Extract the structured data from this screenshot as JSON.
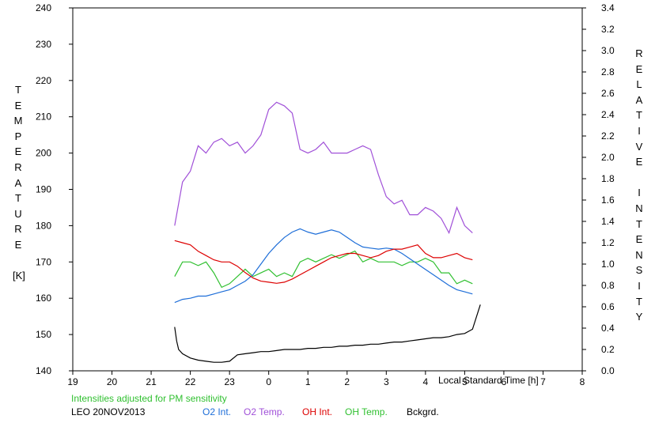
{
  "chart_data": {
    "type": "line",
    "left_axis_letters": [
      "T",
      "E",
      "M",
      "P",
      "E",
      "R",
      "A",
      "T",
      "U",
      "R",
      "E",
      "",
      "[K]"
    ],
    "right_axis_letters": [
      "R",
      "E",
      "L",
      "A",
      "T",
      "I",
      "V",
      "E",
      "",
      "I",
      "N",
      "T",
      "E",
      "N",
      "S",
      "I",
      "T",
      "Y"
    ],
    "xlabel": "Local Standard Time [h]",
    "x_ticks": [
      "19",
      "20",
      "21",
      "22",
      "23",
      "0",
      "1",
      "2",
      "3",
      "4",
      "5",
      "6",
      "7",
      "8"
    ],
    "xlim": [
      19,
      32
    ],
    "ylim_left": [
      140,
      240
    ],
    "y_ticks_left": [
      "140",
      "150",
      "160",
      "170",
      "180",
      "190",
      "200",
      "210",
      "220",
      "230",
      "240"
    ],
    "ylim_right": [
      0.0,
      3.4
    ],
    "y_ticks_right": [
      "0.0",
      "0.2",
      "0.4",
      "0.6",
      "0.8",
      "1.0",
      "1.2",
      "1.4",
      "1.6",
      "1.8",
      "2.0",
      "2.2",
      "2.4",
      "2.6",
      "2.8",
      "3.0",
      "3.2",
      "3.4"
    ],
    "note": "Intensities adjusted for PM sensitivity",
    "station": "LEO 20NOV2013",
    "legend": [
      {
        "label": "O2 Int.",
        "color": "#1e6ed8"
      },
      {
        "label": "O2 Temp.",
        "color": "#a050d8"
      },
      {
        "label": "OH Int.",
        "color": "#dd0000"
      },
      {
        "label": "OH Temp.",
        "color": "#30c030"
      },
      {
        "label": "Bckgrd.",
        "color": "#000000"
      }
    ],
    "series": [
      {
        "name": "O2 Temp.",
        "axis": "left",
        "color": "#a050d8",
        "x": [
          21.6,
          21.8,
          22.0,
          22.2,
          22.4,
          22.6,
          22.8,
          23.0,
          23.2,
          23.4,
          23.6,
          23.8,
          24.0,
          24.2,
          24.4,
          24.6,
          24.8,
          25.0,
          25.2,
          25.4,
          25.6,
          25.8,
          26.0,
          26.2,
          26.4,
          26.6,
          26.8,
          27.0,
          27.2,
          27.4,
          27.6,
          27.8,
          28.0,
          28.2,
          28.4,
          28.6,
          28.8,
          29.0,
          29.2
        ],
        "y": [
          180,
          192,
          195,
          202,
          200,
          203,
          204,
          202,
          203,
          200,
          202,
          205,
          212,
          214,
          213,
          211,
          201,
          200,
          201,
          203,
          200,
          200,
          200,
          201,
          202,
          201,
          194,
          188,
          186,
          187,
          183,
          183,
          185,
          184,
          182,
          178,
          185,
          180,
          178
        ]
      },
      {
        "name": "OH Temp.",
        "axis": "left",
        "color": "#30c030",
        "x": [
          21.6,
          21.8,
          22.0,
          22.2,
          22.4,
          22.6,
          22.8,
          23.0,
          23.2,
          23.4,
          23.6,
          23.8,
          24.0,
          24.2,
          24.4,
          24.6,
          24.8,
          25.0,
          25.2,
          25.4,
          25.6,
          25.8,
          26.0,
          26.2,
          26.4,
          26.6,
          26.8,
          27.0,
          27.2,
          27.4,
          27.6,
          27.8,
          28.0,
          28.2,
          28.4,
          28.6,
          28.8,
          29.0,
          29.2
        ],
        "y": [
          166,
          170,
          170,
          169,
          170,
          167,
          163,
          164,
          166,
          168,
          166,
          167,
          168,
          166,
          167,
          166,
          170,
          171,
          170,
          171,
          172,
          171,
          172,
          173,
          170,
          171,
          170,
          170,
          170,
          169,
          170,
          170,
          171,
          170,
          167,
          167,
          164,
          165,
          164
        ]
      },
      {
        "name": "O2 Int.",
        "axis": "right",
        "color": "#1e6ed8",
        "x": [
          21.6,
          21.8,
          22.0,
          22.2,
          22.4,
          22.6,
          22.8,
          23.0,
          23.2,
          23.4,
          23.6,
          23.8,
          24.0,
          24.2,
          24.4,
          24.6,
          24.8,
          25.0,
          25.2,
          25.4,
          25.6,
          25.8,
          26.0,
          26.2,
          26.4,
          26.6,
          26.8,
          27.0,
          27.2,
          27.4,
          27.6,
          27.8,
          28.0,
          28.2,
          28.4,
          28.6,
          28.8,
          29.0,
          29.2
        ],
        "y": [
          0.64,
          0.67,
          0.68,
          0.7,
          0.7,
          0.72,
          0.74,
          0.76,
          0.8,
          0.84,
          0.9,
          1.0,
          1.1,
          1.18,
          1.25,
          1.3,
          1.33,
          1.3,
          1.28,
          1.3,
          1.32,
          1.3,
          1.25,
          1.2,
          1.16,
          1.15,
          1.14,
          1.15,
          1.14,
          1.1,
          1.05,
          1.0,
          0.95,
          0.9,
          0.85,
          0.8,
          0.76,
          0.74,
          0.72
        ]
      },
      {
        "name": "OH Int.",
        "axis": "right",
        "color": "#dd0000",
        "x": [
          21.6,
          21.8,
          22.0,
          22.2,
          22.4,
          22.6,
          22.8,
          23.0,
          23.2,
          23.4,
          23.6,
          23.8,
          24.0,
          24.2,
          24.4,
          24.6,
          24.8,
          25.0,
          25.2,
          25.4,
          25.6,
          25.8,
          26.0,
          26.2,
          26.4,
          26.6,
          26.8,
          27.0,
          27.2,
          27.4,
          27.6,
          27.8,
          28.0,
          28.2,
          28.4,
          28.6,
          28.8,
          29.0,
          29.2
        ],
        "y": [
          1.22,
          1.2,
          1.18,
          1.12,
          1.08,
          1.04,
          1.02,
          1.02,
          0.98,
          0.92,
          0.87,
          0.84,
          0.83,
          0.82,
          0.83,
          0.86,
          0.9,
          0.94,
          0.98,
          1.02,
          1.06,
          1.08,
          1.1,
          1.1,
          1.08,
          1.06,
          1.08,
          1.12,
          1.14,
          1.14,
          1.16,
          1.18,
          1.1,
          1.06,
          1.06,
          1.08,
          1.1,
          1.06,
          1.04
        ]
      },
      {
        "name": "Bckgrd.",
        "axis": "right",
        "color": "#000000",
        "x": [
          21.6,
          21.65,
          21.7,
          21.8,
          22.0,
          22.2,
          22.4,
          22.6,
          22.8,
          23.0,
          23.2,
          23.4,
          23.6,
          23.8,
          24.0,
          24.2,
          24.4,
          24.6,
          24.8,
          25.0,
          25.2,
          25.4,
          25.6,
          25.8,
          26.0,
          26.2,
          26.4,
          26.6,
          26.8,
          27.0,
          27.2,
          27.4,
          27.6,
          27.8,
          28.0,
          28.2,
          28.4,
          28.6,
          28.8,
          29.0,
          29.2,
          29.4
        ],
        "y": [
          0.41,
          0.28,
          0.2,
          0.16,
          0.12,
          0.1,
          0.09,
          0.08,
          0.08,
          0.09,
          0.15,
          0.16,
          0.17,
          0.18,
          0.18,
          0.19,
          0.2,
          0.2,
          0.2,
          0.21,
          0.21,
          0.22,
          0.22,
          0.23,
          0.23,
          0.24,
          0.24,
          0.25,
          0.25,
          0.26,
          0.27,
          0.27,
          0.28,
          0.29,
          0.3,
          0.31,
          0.31,
          0.32,
          0.34,
          0.35,
          0.39,
          0.62
        ]
      }
    ]
  }
}
